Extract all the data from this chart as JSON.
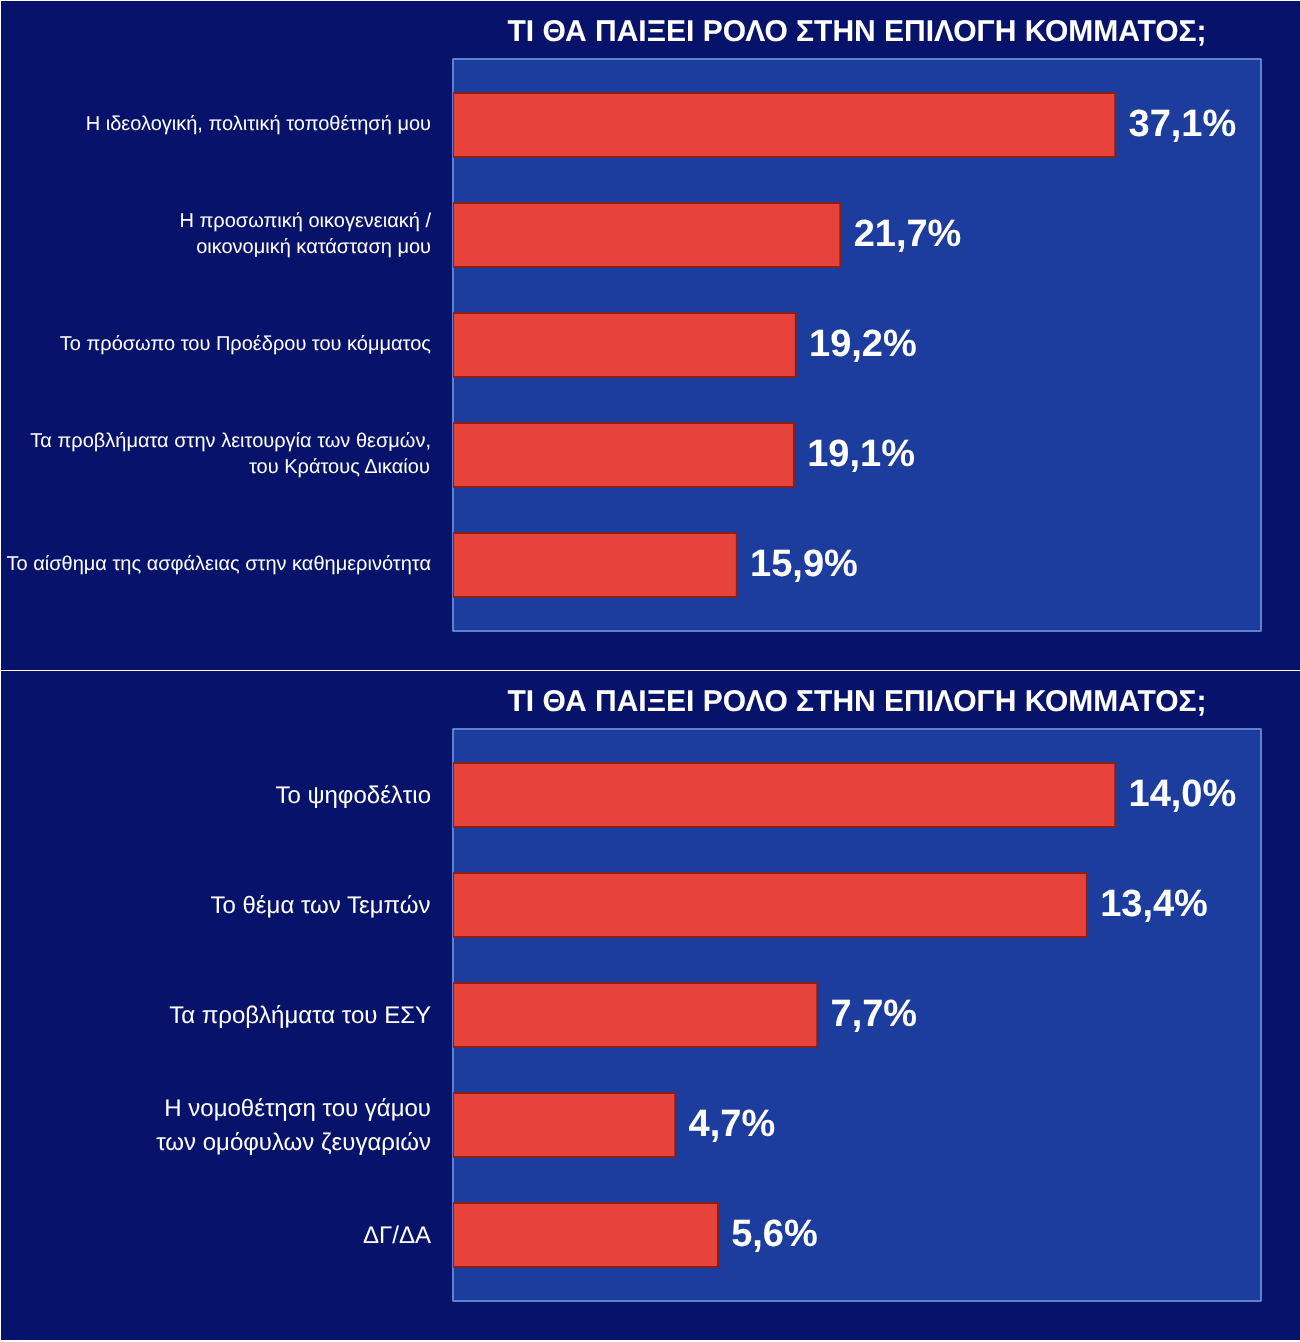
{
  "chart_data": [
    {
      "type": "bar",
      "orientation": "horizontal",
      "title": "ΤΙ ΘΑ ΠΑΙΞΕΙ ΡΟΛΟ ΣΤΗΝ ΕΠΙΛΟΓΗ ΚΟΜΜΑΤΟΣ;",
      "categories": [
        "Η ιδεολογική, πολιτική τοποθέτησή μου",
        "Η προσωπική οικογενειακή /\nοικονομική κατάσταση μου",
        "Το πρόσωπο του Προέδρου του κόμματος",
        "Τα προβλήματα στην λειτουργία των θεσμών,\nτου Κράτους Δικαίου",
        "Το αίσθημα της ασφάλειας στην καθημερινότητα"
      ],
      "values": [
        37.1,
        21.7,
        19.2,
        19.1,
        15.9
      ],
      "value_labels": [
        "37,1%",
        "21,7%",
        "19,2%",
        "19,1%",
        "15,9%"
      ],
      "color": "#e8433a",
      "tick_labels": "y"
    },
    {
      "type": "bar",
      "orientation": "horizontal",
      "title": "ΤΙ ΘΑ ΠΑΙΞΕΙ ΡΟΛΟ ΣΤΗΝ ΕΠΙΛΟΓΗ ΚΟΜΜΑΤΟΣ;",
      "categories": [
        "Το ψηφοδέλτιο",
        "Το θέμα των Τεμπών",
        "Τα προβλήματα του ΕΣΥ",
        "Η νομοθέτηση του γάμου\nτων ομόφυλων ζευγαριών",
        "ΔΓ/ΔΑ"
      ],
      "values": [
        14.0,
        13.4,
        7.7,
        4.7,
        5.6
      ],
      "value_labels": [
        "14,0%",
        "13,4%",
        "7,7%",
        "4,7%",
        "5,6%"
      ],
      "color": "#e8433a",
      "tick_labels": "y"
    }
  ]
}
